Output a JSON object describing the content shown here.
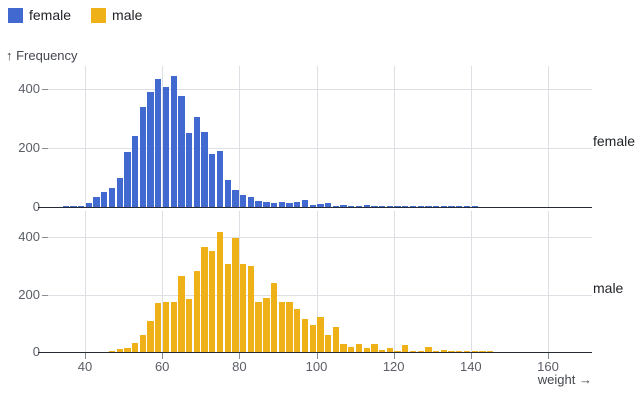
{
  "legend": {
    "items": [
      {
        "label": "female",
        "color": "#4269d0"
      },
      {
        "label": "male",
        "color": "#efb118"
      }
    ]
  },
  "axes": {
    "y_title": "↑ Frequency",
    "x_title": "weight →"
  },
  "facet_labels": [
    "female",
    "male"
  ],
  "colors": {
    "female_bar": "#4269d0",
    "male_bar": "#efb118",
    "gridline": "#dcdfe3",
    "axis_line": "#272c34",
    "tick_text": "#5a5e66",
    "axis_title_text": "#43474e",
    "legend_text": "#1e2126",
    "background": "#ffffff"
  },
  "chart_data": {
    "type": "bar",
    "subtype": "faceted-histogram",
    "title": "",
    "xlabel": "weight →",
    "ylabel": "↑ Frequency",
    "facet_by": "sex",
    "facet_label_position": "right",
    "legend_position": "top-left",
    "grid": true,
    "bin_width": 2,
    "xlim": [
      30,
      172
    ],
    "ylim": [
      0,
      450
    ],
    "x_ticks": [
      40,
      60,
      80,
      100,
      120,
      140,
      160
    ],
    "y_ticks": [
      0,
      200,
      400
    ],
    "bin_starts": [
      34,
      36,
      38,
      40,
      42,
      44,
      46,
      48,
      50,
      52,
      54,
      56,
      58,
      60,
      62,
      64,
      66,
      68,
      70,
      72,
      74,
      76,
      78,
      80,
      82,
      84,
      86,
      88,
      90,
      92,
      94,
      96,
      98,
      100,
      102,
      104,
      106,
      108,
      110,
      112,
      114,
      116,
      118,
      120,
      122,
      124,
      126,
      128,
      130,
      132,
      134,
      136,
      138,
      140,
      142,
      144
    ],
    "series": [
      {
        "name": "female",
        "color": "#4269d0",
        "counts": [
          3,
          2,
          3,
          15,
          33,
          52,
          63,
          99,
          185,
          240,
          340,
          390,
          433,
          406,
          444,
          375,
          250,
          305,
          255,
          178,
          190,
          90,
          56,
          41,
          33,
          22,
          18,
          15,
          18,
          13,
          16,
          24,
          8,
          9,
          12,
          2,
          6,
          2,
          3,
          6,
          2,
          5,
          2,
          4,
          1,
          4,
          1,
          1,
          2,
          1,
          1,
          1,
          1,
          1,
          0,
          0
        ]
      },
      {
        "name": "male",
        "color": "#efb118",
        "counts": [
          0,
          0,
          0,
          0,
          0,
          0,
          2,
          10,
          15,
          33,
          60,
          108,
          172,
          173,
          173,
          265,
          184,
          282,
          366,
          351,
          418,
          305,
          398,
          305,
          300,
          173,
          189,
          239,
          173,
          173,
          150,
          114,
          94,
          123,
          59,
          88,
          28,
          18,
          28,
          13,
          27,
          7,
          15,
          5,
          24,
          3,
          3,
          18,
          2,
          6,
          2,
          1,
          1,
          2,
          1,
          1
        ]
      }
    ]
  }
}
